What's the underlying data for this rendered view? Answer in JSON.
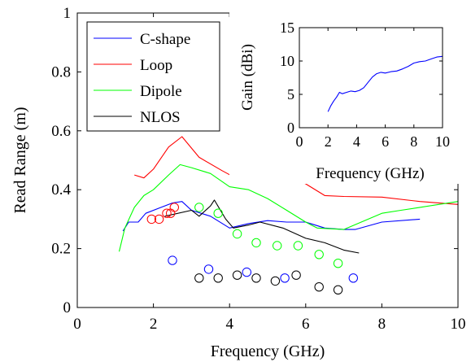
{
  "chart_data": [
    {
      "type": "line",
      "xlabel": "Frequency (GHz)",
      "ylabel": "Read Range (m)",
      "xlim": [
        0,
        10
      ],
      "ylim": [
        0,
        1
      ],
      "x_ticks": [
        0,
        2,
        4,
        6,
        8,
        10
      ],
      "y_ticks": [
        0,
        0.2,
        0.4,
        0.6,
        0.8,
        1
      ],
      "x_tick_labels": [
        "0",
        "2",
        "4",
        "6",
        "8",
        "10"
      ],
      "y_tick_labels": [
        "0",
        "0.2",
        "0.4",
        "0.6",
        "0.8",
        "1"
      ],
      "legend_position": "top-left",
      "series": [
        {
          "name": "C-shape",
          "color": "#0000ff",
          "points": [
            [
              1.2,
              0.26
            ],
            [
              1.35,
              0.29
            ],
            [
              1.6,
              0.29
            ],
            [
              1.8,
              0.32
            ],
            [
              2.2,
              0.34
            ],
            [
              2.5,
              0.355
            ],
            [
              2.75,
              0.36
            ],
            [
              3.0,
              0.33
            ],
            [
              3.5,
              0.31
            ],
            [
              4.0,
              0.27
            ],
            [
              4.5,
              0.285
            ],
            [
              5.0,
              0.295
            ],
            [
              5.5,
              0.29
            ],
            [
              6.0,
              0.29
            ],
            [
              6.5,
              0.27
            ],
            [
              7.0,
              0.265
            ],
            [
              7.3,
              0.265
            ],
            [
              8.0,
              0.29
            ],
            [
              9.0,
              0.3
            ]
          ]
        },
        {
          "name": "Loop",
          "color": "#ff0000",
          "points": [
            [
              1.5,
              0.45
            ],
            [
              1.75,
              0.44
            ],
            [
              2.0,
              0.47
            ],
            [
              2.4,
              0.545
            ],
            [
              2.75,
              0.58
            ],
            [
              3.2,
              0.51
            ],
            [
              3.8,
              0.465
            ],
            [
              4.3,
              0.43
            ],
            [
              5.0,
              0.47
            ],
            [
              5.5,
              0.445
            ],
            [
              6.0,
              0.42
            ],
            [
              6.5,
              0.38
            ],
            [
              7.0,
              0.377
            ],
            [
              8.0,
              0.375
            ],
            [
              9.0,
              0.36
            ],
            [
              10.0,
              0.35
            ]
          ]
        },
        {
          "name": "Dipole",
          "color": "#00ff00",
          "points": [
            [
              1.1,
              0.19
            ],
            [
              1.25,
              0.27
            ],
            [
              1.5,
              0.34
            ],
            [
              1.75,
              0.38
            ],
            [
              2.0,
              0.4
            ],
            [
              2.4,
              0.45
            ],
            [
              2.7,
              0.485
            ],
            [
              3.0,
              0.475
            ],
            [
              3.5,
              0.455
            ],
            [
              4.0,
              0.41
            ],
            [
              4.5,
              0.4
            ],
            [
              5.0,
              0.37
            ],
            [
              5.5,
              0.33
            ],
            [
              6.0,
              0.29
            ],
            [
              6.3,
              0.27
            ],
            [
              7.0,
              0.265
            ],
            [
              8.0,
              0.32
            ],
            [
              8.5,
              0.33
            ],
            [
              9.0,
              0.34
            ],
            [
              10.0,
              0.36
            ]
          ]
        },
        {
          "name": "NLOS",
          "color": "#000000",
          "points": [
            [
              2.3,
              0.31
            ],
            [
              3.0,
              0.33
            ],
            [
              3.2,
              0.31
            ],
            [
              3.5,
              0.345
            ],
            [
              3.6,
              0.365
            ],
            [
              3.9,
              0.3
            ],
            [
              4.1,
              0.27
            ],
            [
              4.5,
              0.28
            ],
            [
              4.8,
              0.29
            ],
            [
              5.4,
              0.27
            ],
            [
              6.0,
              0.235
            ],
            [
              6.5,
              0.22
            ],
            [
              7.0,
              0.195
            ],
            [
              7.4,
              0.185
            ]
          ]
        }
      ],
      "scatter_series": [
        {
          "color": "#0000ff",
          "points": [
            [
              2.5,
              0.16
            ],
            [
              3.45,
              0.13
            ],
            [
              4.45,
              0.12
            ],
            [
              5.45,
              0.1
            ],
            [
              7.25,
              0.1
            ]
          ]
        },
        {
          "color": "#ff0000",
          "points": [
            [
              1.95,
              0.3
            ],
            [
              2.15,
              0.3
            ],
            [
              2.35,
              0.32
            ],
            [
              2.45,
              0.32
            ],
            [
              2.55,
              0.34
            ]
          ]
        },
        {
          "color": "#00ff00",
          "points": [
            [
              3.2,
              0.34
            ],
            [
              3.7,
              0.32
            ],
            [
              4.2,
              0.25
            ],
            [
              4.7,
              0.22
            ],
            [
              5.25,
              0.21
            ],
            [
              5.8,
              0.21
            ],
            [
              6.35,
              0.18
            ],
            [
              6.85,
              0.15
            ]
          ]
        },
        {
          "color": "#000000",
          "points": [
            [
              3.2,
              0.1
            ],
            [
              3.7,
              0.1
            ],
            [
              4.2,
              0.11
            ],
            [
              4.7,
              0.1
            ],
            [
              5.2,
              0.09
            ],
            [
              5.75,
              0.11
            ],
            [
              6.35,
              0.07
            ],
            [
              6.85,
              0.06
            ]
          ]
        }
      ]
    },
    {
      "type": "line",
      "xlabel": "Frequency (GHz)",
      "ylabel": "Gain (dBi)",
      "xlim": [
        0,
        10
      ],
      "ylim": [
        0,
        15
      ],
      "x_ticks": [
        0,
        2,
        4,
        6,
        8,
        10
      ],
      "y_ticks": [
        0,
        5,
        10,
        15
      ],
      "x_tick_labels": [
        "0",
        "2",
        "4",
        "6",
        "8",
        "10"
      ],
      "y_tick_labels": [
        "0",
        "5",
        "10",
        "15"
      ],
      "position": "top-right inset",
      "series": [
        {
          "color": "#0000ff",
          "points": [
            [
              2.0,
              2.4
            ],
            [
              2.2,
              3.3
            ],
            [
              2.4,
              4.0
            ],
            [
              2.6,
              4.6
            ],
            [
              2.8,
              5.3
            ],
            [
              3.0,
              5.1
            ],
            [
              3.3,
              5.3
            ],
            [
              3.6,
              5.5
            ],
            [
              3.9,
              5.4
            ],
            [
              4.2,
              5.6
            ],
            [
              4.5,
              6.0
            ],
            [
              4.8,
              6.8
            ],
            [
              5.1,
              7.6
            ],
            [
              5.4,
              8.1
            ],
            [
              5.7,
              8.3
            ],
            [
              6.0,
              8.2
            ],
            [
              6.4,
              8.4
            ],
            [
              6.8,
              8.5
            ],
            [
              7.2,
              8.8
            ],
            [
              7.6,
              9.2
            ],
            [
              8.0,
              9.7
            ],
            [
              8.4,
              9.9
            ],
            [
              8.8,
              10.0
            ],
            [
              9.2,
              10.3
            ],
            [
              9.6,
              10.6
            ],
            [
              10.0,
              10.7
            ]
          ]
        }
      ]
    }
  ]
}
